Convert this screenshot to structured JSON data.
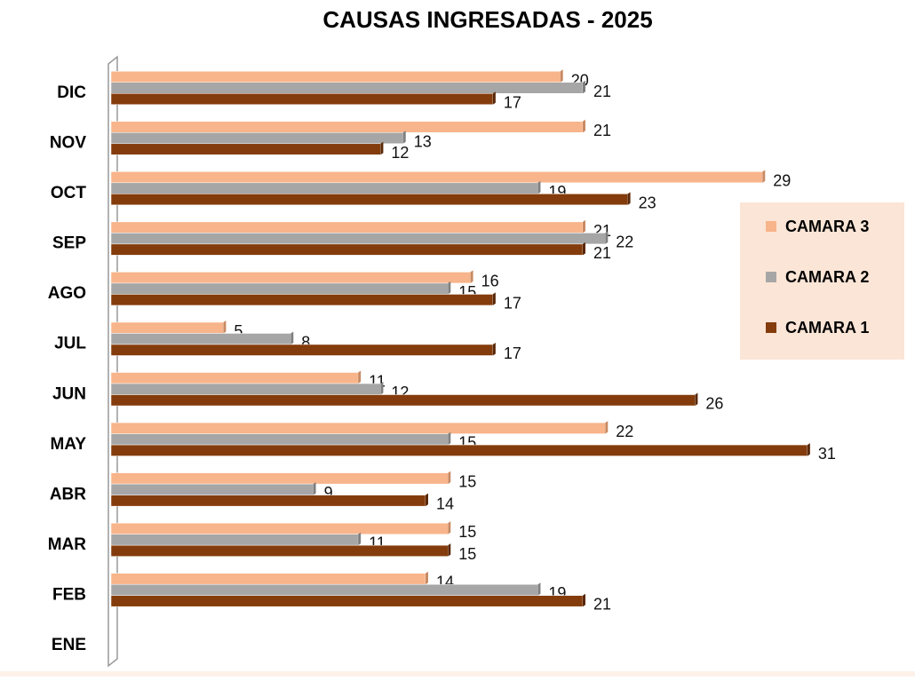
{
  "chart_data": {
    "type": "bar",
    "orientation": "horizontal",
    "title": "CAUSAS INGRESADAS - 2025",
    "categories": [
      "ENE",
      "FEB",
      "MAR",
      "ABR",
      "MAY",
      "JUN",
      "JUL",
      "AGO",
      "SEP",
      "OCT",
      "NOV",
      "DIC"
    ],
    "series": [
      {
        "name": "CAMARA 3",
        "color": "#F8B48A",
        "values": [
          null,
          14,
          15,
          15,
          22,
          11,
          5,
          16,
          21,
          29,
          21,
          20
        ]
      },
      {
        "name": "CAMARA 2",
        "color": "#A6A6A6",
        "values": [
          null,
          19,
          11,
          9,
          15,
          12,
          8,
          15,
          22,
          19,
          13,
          21
        ]
      },
      {
        "name": "CAMARA 1",
        "color": "#843C0C",
        "values": [
          null,
          21,
          15,
          14,
          31,
          26,
          17,
          17,
          21,
          23,
          12,
          17
        ]
      }
    ],
    "xlim": [
      0,
      35
    ],
    "legend": "right"
  }
}
